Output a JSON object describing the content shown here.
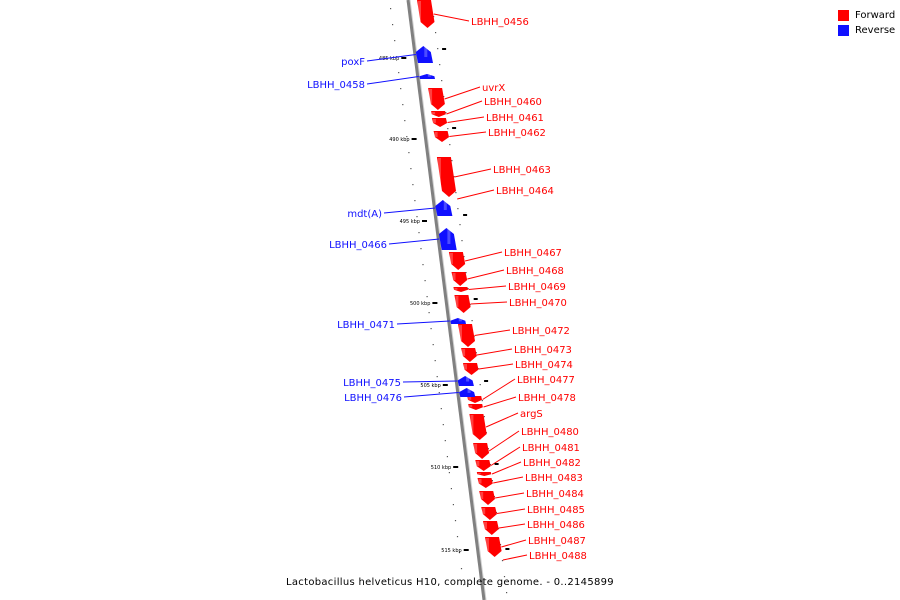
{
  "colors": {
    "forward": "#ff0000",
    "reverse": "#1010ff",
    "axis": "#808080",
    "tick": "#000000"
  },
  "legend": {
    "forward_label": "Forward",
    "reverse_label": "Reverse"
  },
  "footer": "Lactobacillus helveticus H10, complete genome. - 0..2145899",
  "position_labels": [
    "485 kbp",
    "490 kbp",
    "495 kbp",
    "500 kbp",
    "505 kbp",
    "510 kbp",
    "515 kbp"
  ],
  "forward_genes": [
    "LBHH_0456",
    "uvrX",
    "LBHH_0460",
    "LBHH_0461",
    "LBHH_0462",
    "LBHH_0463",
    "LBHH_0464",
    "LBHH_0467",
    "LBHH_0468",
    "LBHH_0469",
    "LBHH_0470",
    "LBHH_0472",
    "LBHH_0473",
    "LBHH_0474",
    "LBHH_0477",
    "LBHH_0478",
    "argS",
    "LBHH_0480",
    "LBHH_0481",
    "LBHH_0482",
    "LBHH_0483",
    "LBHH_0484",
    "LBHH_0485",
    "LBHH_0486",
    "LBHH_0487",
    "LBHH_0488"
  ],
  "reverse_genes": [
    "poxF",
    "LBHH_0458",
    "mdt(A)",
    "LBHH_0466",
    "LBHH_0471",
    "LBHH_0475",
    "LBHH_0476"
  ]
}
